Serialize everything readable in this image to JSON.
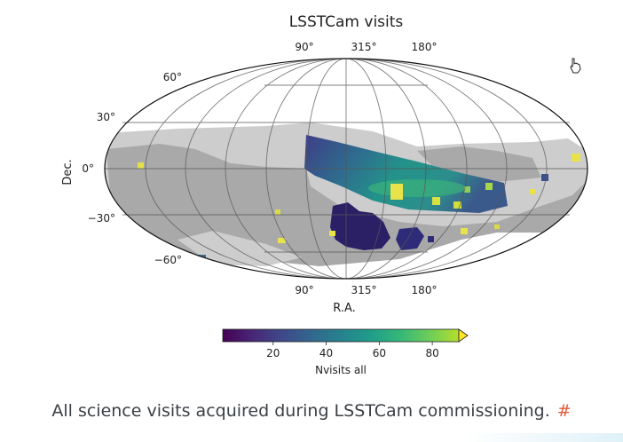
{
  "chart_data": {
    "type": "heatmap",
    "projection": "mollweide",
    "title": "LSSTCam visits",
    "xlabel": "R.A.",
    "ylabel": "Dec.",
    "x_tick_labels": [
      "90°",
      "315°",
      "180°"
    ],
    "y_tick_labels": [
      "60°",
      "30°",
      "0°",
      "−30°",
      "−60°"
    ],
    "grid": true,
    "colorbar": {
      "label": "Nvisits all",
      "ticks": [
        "20",
        "40",
        "60",
        "80"
      ],
      "range": [
        1,
        90
      ],
      "extend": "max",
      "colormap": "viridis"
    },
    "colors": {
      "footprint_inner": "#a9a9a9",
      "footprint_outer": "#cdcdcd",
      "sphere_background": "#ffffff"
    }
  },
  "caption": {
    "text": "All science visits acquired during LSSTCam commissioning.",
    "anchor": "#"
  }
}
